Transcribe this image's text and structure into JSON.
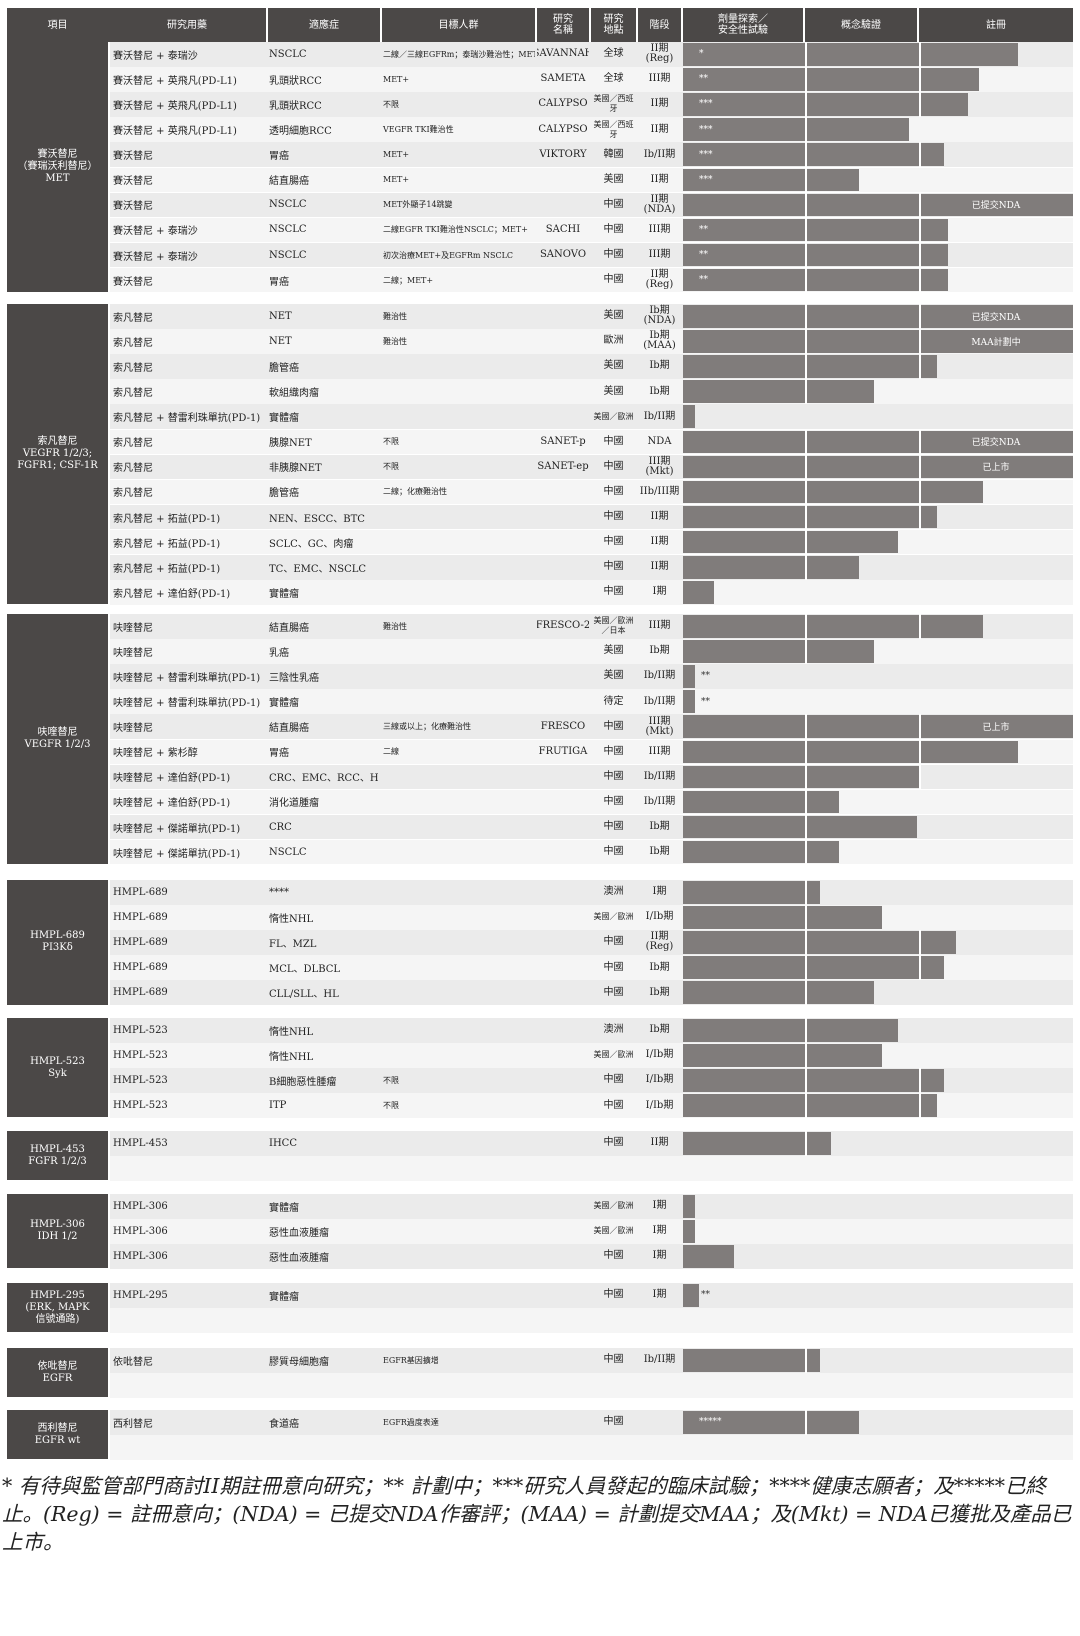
{
  "headers": [
    "項目",
    "研究用藥",
    "適應症",
    "目標人群",
    "研究\n名稱",
    "研究\n地點",
    "階段",
    "劑量探索／\n安全性試驗",
    "概念驗證",
    "註冊"
  ],
  "groups": [
    {
      "label": "賽沃替尼\n（賽瑞沃利替尼）\nMET",
      "rows": [
        {
          "drug": "賽沃替尼 + 泰瑞沙",
          "ind": "NSCLC",
          "target": "二線／三線EGFRm；泰瑞沙難治性；MET+",
          "study": "SAVANNAH",
          "loc": "全球",
          "phase": "II期(Reg)",
          "progress": 0.86,
          "mark": "*"
        },
        {
          "drug": "賽沃替尼 + 英飛凡(PD-L1)",
          "ind": "乳頭狀RCC",
          "target": "MET+",
          "study": "SAMETA",
          "loc": "全球",
          "phase": "III期",
          "progress": 0.76,
          "mark": "**"
        },
        {
          "drug": "賽沃替尼 + 英飛凡(PD-L1)",
          "ind": "乳頭狀RCC",
          "target": "不限",
          "study": "CALYPSO",
          "loc": "美國／西班牙",
          "phase": "II期",
          "progress": 0.73,
          "mark": "***"
        },
        {
          "drug": "賽沃替尼 + 英飛凡(PD-L1)",
          "ind": "透明細胞RCC",
          "target": "VEGFR TKI難治性",
          "study": "CALYPSO",
          "loc": "美國／西班牙",
          "phase": "II期",
          "progress": 0.58,
          "mark": "***"
        },
        {
          "drug": "賽沃替尼",
          "ind": "胃癌",
          "target": "MET+",
          "study": "VIKTORY",
          "loc": "韓國",
          "phase": "Ib/II期",
          "progress": 0.67,
          "mark": "***"
        },
        {
          "drug": "賽沃替尼",
          "ind": "結直腸癌",
          "target": "MET+",
          "study": "",
          "loc": "美國",
          "phase": "II期",
          "progress": 0.45,
          "mark": "***"
        },
        {
          "drug": "賽沃替尼",
          "ind": "NSCLC",
          "target": "MET外顯子14跳變",
          "study": "",
          "loc": "中國",
          "phase": "II期\n(NDA)",
          "progress": 1.0,
          "mark": "",
          "note": "已提交NDA"
        },
        {
          "drug": "賽沃替尼 + 泰瑞沙",
          "ind": "NSCLC",
          "target": "二線EGFR TKI難治性NSCLC；MET+",
          "study": "SACHI",
          "loc": "中國",
          "phase": "III期",
          "progress": 0.68,
          "mark": "**"
        },
        {
          "drug": "賽沃替尼 + 泰瑞沙",
          "ind": "NSCLC",
          "target": "初次治療MET+及EGFRm NSCLC",
          "study": "SANOVO",
          "loc": "中國",
          "phase": "III期",
          "progress": 0.68,
          "mark": "**"
        },
        {
          "drug": "賽沃替尼",
          "ind": "胃癌",
          "target": "二線；MET+",
          "study": "",
          "loc": "中國",
          "phase": "II期(Reg)",
          "progress": 0.68,
          "mark": "**"
        }
      ]
    },
    {
      "label": "索凡替尼\nVEGFR 1/2/3;\nFGFR1; CSF-1R",
      "rows": [
        {
          "drug": "索凡替尼",
          "ind": "NET",
          "target": "難治性",
          "study": "",
          "loc": "美國",
          "phase": "Ib期\n(NDA)",
          "progress": 1.0,
          "mark": "",
          "note": "已提交NDA"
        },
        {
          "drug": "索凡替尼",
          "ind": "NET",
          "target": "難治性",
          "study": "",
          "loc": "歐洲",
          "phase": "Ib期\n(MAA)",
          "progress": 1.0,
          "mark": "",
          "note": "MAA計劃中"
        },
        {
          "drug": "索凡替尼",
          "ind": "膽管癌",
          "target": "",
          "study": "",
          "loc": "美國",
          "phase": "Ib期",
          "progress": 0.65,
          "mark": ""
        },
        {
          "drug": "索凡替尼",
          "ind": "軟組織肉瘤",
          "target": "",
          "study": "",
          "loc": "美國",
          "phase": "Ib期",
          "progress": 0.49,
          "mark": ""
        },
        {
          "drug": "索凡替尼 + 替雷利珠單抗(PD-1)",
          "ind": "實體瘤",
          "target": "",
          "study": "",
          "loc": "美國／歐洲",
          "phase": "Ib/II期",
          "progress": 0.03,
          "mark": ""
        },
        {
          "drug": "索凡替尼",
          "ind": "胰腺NET",
          "target": "不限",
          "study": "SANET-p",
          "loc": "中國",
          "phase": "NDA",
          "progress": 1.0,
          "mark": "",
          "note": "已提交NDA"
        },
        {
          "drug": "索凡替尼",
          "ind": "非胰腺NET",
          "target": "不限",
          "study": "SANET-ep",
          "loc": "中國",
          "phase": "III期(Mkt)",
          "progress": 1.0,
          "mark": "",
          "note": "已上市"
        },
        {
          "drug": "索凡替尼",
          "ind": "膽管癌",
          "target": "二線；化療難治性",
          "study": "",
          "loc": "中國",
          "phase": "IIb/III期",
          "progress": 0.77,
          "mark": ""
        },
        {
          "drug": "索凡替尼 + 拓益(PD-1)",
          "ind": "NEN、ESCC、BTC",
          "target": "",
          "study": "",
          "loc": "中國",
          "phase": "II期",
          "progress": 0.65,
          "mark": ""
        },
        {
          "drug": "索凡替尼 + 拓益(PD-1)",
          "ind": "SCLC、GC、肉瘤",
          "target": "",
          "study": "",
          "loc": "中國",
          "phase": "II期",
          "progress": 0.55,
          "mark": ""
        },
        {
          "drug": "索凡替尼 + 拓益(PD-1)",
          "ind": "TC、EMC、NSCLC",
          "target": "",
          "study": "",
          "loc": "中國",
          "phase": "II期",
          "progress": 0.45,
          "mark": ""
        },
        {
          "drug": "索凡替尼 + 達伯舒(PD-1)",
          "ind": "實體瘤",
          "target": "",
          "study": "",
          "loc": "中國",
          "phase": "I期",
          "progress": 0.08,
          "mark": ""
        }
      ]
    },
    {
      "label": "呋喹替尼\nVEGFR 1/2/3",
      "rows": [
        {
          "drug": "呋喹替尼",
          "ind": "結直腸癌",
          "target": "難治性",
          "study": "FRESCO-2",
          "loc": "美國／歐洲／日本",
          "phase": "III期",
          "progress": 0.77,
          "mark": ""
        },
        {
          "drug": "呋喹替尼",
          "ind": "乳癌",
          "target": "",
          "study": "",
          "loc": "美國",
          "phase": "Ib期",
          "progress": 0.49,
          "mark": ""
        },
        {
          "drug": "呋喹替尼 + 替雷利珠單抗(PD-1)",
          "ind": "三陰性乳癌",
          "target": "",
          "study": "",
          "loc": "美國",
          "phase": "Ib/II期",
          "progress": 0.03,
          "mark": "**"
        },
        {
          "drug": "呋喹替尼 + 替雷利珠單抗(PD-1)",
          "ind": "實體瘤",
          "target": "",
          "study": "",
          "loc": "待定",
          "phase": "Ib/II期",
          "progress": 0.03,
          "mark": "**"
        },
        {
          "drug": "呋喹替尼",
          "ind": "結直腸癌",
          "target": "三線或以上；化療難治性",
          "study": "FRESCO",
          "loc": "中國",
          "phase": "III期(Mkt)",
          "progress": 1.0,
          "mark": "",
          "note": "已上市"
        },
        {
          "drug": "呋喹替尼 + 紫杉醇",
          "ind": "胃癌",
          "target": "二線",
          "study": "FRUTIGA",
          "loc": "中國",
          "phase": "III期",
          "progress": 0.86,
          "mark": ""
        },
        {
          "drug": "呋喹替尼 + 達伯舒(PD-1)",
          "ind": "CRC、EMC、RCC、HCC",
          "target": "",
          "study": "",
          "loc": "中國",
          "phase": "Ib/II期",
          "progress": 0.61,
          "mark": ""
        },
        {
          "drug": "呋喹替尼 + 達伯舒(PD-1)",
          "ind": "消化道腫瘤",
          "target": "",
          "study": "",
          "loc": "中國",
          "phase": "Ib/II期",
          "progress": 0.4,
          "mark": ""
        },
        {
          "drug": "呋喹替尼 + 傑諾單抗(PD-1)",
          "ind": "CRC",
          "target": "",
          "study": "",
          "loc": "中國",
          "phase": "Ib期",
          "progress": 0.6,
          "mark": ""
        },
        {
          "drug": "呋喹替尼 + 傑諾單抗(PD-1)",
          "ind": "NSCLC",
          "target": "",
          "study": "",
          "loc": "中國",
          "phase": "Ib期",
          "progress": 0.4,
          "mark": ""
        }
      ]
    },
    {
      "label": "HMPL-689\nPI3Kδ",
      "rows": [
        {
          "drug": "HMPL-689",
          "ind": "****",
          "target": "",
          "study": "",
          "loc": "澳洲",
          "phase": "I期",
          "progress": 0.35,
          "mark": ""
        },
        {
          "drug": "HMPL-689",
          "ind": "惰性NHL",
          "target": "",
          "study": "",
          "loc": "美國／歐洲",
          "phase": "I/Ib期",
          "progress": 0.51,
          "mark": ""
        },
        {
          "drug": "HMPL-689",
          "ind": "FL、MZL",
          "target": "",
          "study": "",
          "loc": "中國",
          "phase": "II期(Reg)",
          "progress": 0.7,
          "mark": ""
        },
        {
          "drug": "HMPL-689",
          "ind": "MCL、DLBCL",
          "target": "",
          "study": "",
          "loc": "中國",
          "phase": "Ib期",
          "progress": 0.67,
          "mark": ""
        },
        {
          "drug": "HMPL-689",
          "ind": "CLL/SLL、HL",
          "target": "",
          "study": "",
          "loc": "中國",
          "phase": "Ib期",
          "progress": 0.49,
          "mark": ""
        }
      ]
    },
    {
      "label": "HMPL-523\nSyk",
      "rows": [
        {
          "drug": "HMPL-523",
          "ind": "惰性NHL",
          "target": "",
          "study": "",
          "loc": "澳洲",
          "phase": "Ib期",
          "progress": 0.55,
          "mark": ""
        },
        {
          "drug": "HMPL-523",
          "ind": "惰性NHL",
          "target": "",
          "study": "",
          "loc": "美國／歐洲",
          "phase": "I/Ib期",
          "progress": 0.51,
          "mark": ""
        },
        {
          "drug": "HMPL-523",
          "ind": "B細胞惡性腫瘤",
          "target": "不限",
          "study": "",
          "loc": "中國",
          "phase": "I/Ib期",
          "progress": 0.67,
          "mark": ""
        },
        {
          "drug": "HMPL-523",
          "ind": "ITP",
          "target": "不限",
          "study": "",
          "loc": "中國",
          "phase": "I/Ib期",
          "progress": 0.65,
          "mark": ""
        }
      ]
    },
    {
      "label": "HMPL-453\nFGFR 1/2/3",
      "rows": [
        {
          "drug": "HMPL-453",
          "ind": "IHCC",
          "target": "",
          "study": "",
          "loc": "中國",
          "phase": "II期",
          "progress": 0.38,
          "mark": ""
        }
      ]
    },
    {
      "label": "HMPL-306\nIDH 1/2",
      "rows": [
        {
          "drug": "HMPL-306",
          "ind": "實體瘤",
          "target": "",
          "study": "",
          "loc": "美國／歐洲",
          "phase": "I期",
          "progress": 0.03,
          "mark": ""
        },
        {
          "drug": "HMPL-306",
          "ind": "惡性血液腫瘤",
          "target": "",
          "study": "",
          "loc": "美國／歐洲",
          "phase": "I期",
          "progress": 0.03,
          "mark": ""
        },
        {
          "drug": "HMPL-306",
          "ind": "惡性血液腫瘤",
          "target": "",
          "study": "",
          "loc": "中國",
          "phase": "I期",
          "progress": 0.13,
          "mark": ""
        }
      ]
    },
    {
      "label": "HMPL-295\n(ERK, MAPK\n信號通路)",
      "rows": [
        {
          "drug": "HMPL-295",
          "ind": "實體瘤",
          "target": "",
          "study": "",
          "loc": "中國",
          "phase": "I期",
          "progress": 0.04,
          "mark": "**"
        }
      ]
    },
    {
      "label": "依吡替尼\nEGFR",
      "rows": [
        {
          "drug": "依吡替尼",
          "ind": "膠質母細胞瘤",
          "target": "EGFR基因擴增",
          "study": "",
          "loc": "中國",
          "phase": "Ib/II期",
          "progress": 0.35,
          "mark": ""
        }
      ]
    },
    {
      "label": "西利替尼\nEGFR wt",
      "rows": [
        {
          "drug": "西利替尼",
          "ind": "食道癌",
          "target": "EGFR過度表達",
          "study": "",
          "loc": "中國",
          "phase": "",
          "progress": 0.45,
          "mark": "*****"
        }
      ]
    }
  ],
  "footnote": "* 有待與監管部門商討II期註冊意向研究；** 計劃中；***研究人員發起的臨床試驗；****健康志願者；及*****已終止。(Reg) = 註冊意向；(NDA) = 已提交NDA作審評；(MAA) = 計劃提交MAA；及(Mkt) = NDA已獲批及產品已上市。"
}
